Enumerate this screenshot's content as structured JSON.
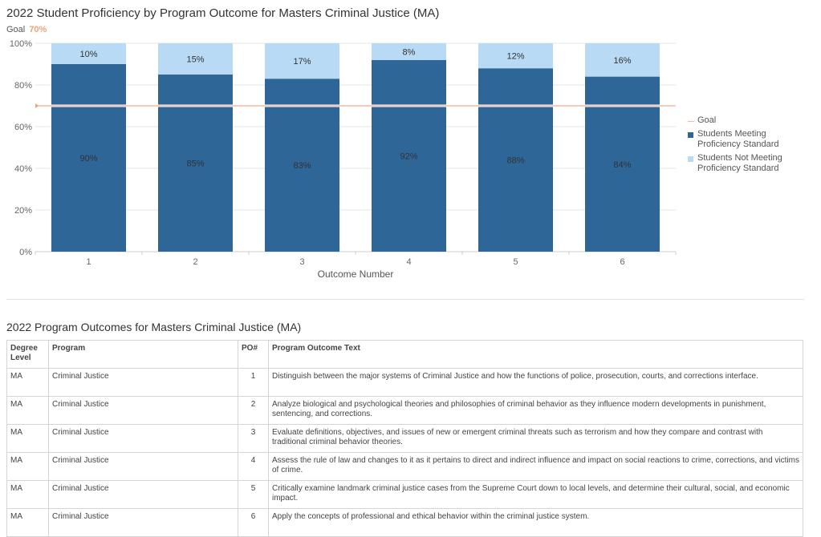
{
  "chart_data": {
    "type": "bar",
    "stacked": true,
    "title": "2022 Student Proficiency by Program Outcome for Masters Criminal Justice (MA)",
    "goal_label": "Goal",
    "goal_value_text": "70%",
    "goal": 70,
    "categories": [
      "1",
      "2",
      "3",
      "4",
      "5",
      "6"
    ],
    "series": [
      {
        "name": "Students Meeting Proficiency Standard",
        "values": [
          90,
          85,
          83,
          92,
          88,
          84
        ],
        "labels": [
          "90%",
          "85%",
          "83%",
          "92%",
          "88%",
          "84%"
        ],
        "color": "#2e6698"
      },
      {
        "name": "Students Not Meeting Proficiency Standard",
        "values": [
          10,
          15,
          17,
          8,
          12,
          16
        ],
        "labels": [
          "10%",
          "15%",
          "17%",
          "8%",
          "12%",
          "16%"
        ],
        "color": "#b8daf4"
      }
    ],
    "goal_color": "#f3b9a5",
    "xlabel": "Outcome Number",
    "ylabel": "",
    "ylim": [
      0,
      100
    ],
    "yticks": [
      0,
      20,
      40,
      60,
      80,
      100
    ],
    "ytick_labels": [
      "0%",
      "20%",
      "40%",
      "60%",
      "80%",
      "100%"
    ],
    "grid": true,
    "legend_position": "right"
  },
  "table": {
    "title": "2022 Program Outcomes for Masters Criminal Justice (MA)",
    "headers": [
      "Degree Level",
      "Program",
      "PO#",
      "Program Outcome Text"
    ],
    "rows": [
      [
        "MA",
        "Criminal Justice",
        "1",
        "Distinguish between the major systems of Criminal Justice and how the functions of police, prosecution, courts, and corrections interface."
      ],
      [
        "MA",
        "Criminal Justice",
        "2",
        "Analyze biological and psychological theories and philosophies of criminal behavior as they influence modern developments in punishment, sentencing, and corrections."
      ],
      [
        "MA",
        "Criminal Justice",
        "3",
        "Evaluate definitions, objectives, and issues of new or emergent criminal threats such as terrorism and how they compare and contrast with traditional criminal behavior theories."
      ],
      [
        "MA",
        "Criminal Justice",
        "4",
        "Assess the rule of law and changes to it as it pertains to direct and indirect influence and impact on social reactions to crime, corrections, and victims of crime."
      ],
      [
        "MA",
        "Criminal Justice",
        "5",
        "Critically examine landmark criminal justice cases from the Supreme Court down to local levels, and determine their cultural, social, and economic impact."
      ],
      [
        "MA",
        "Criminal Justice",
        "6",
        "Apply the concepts of professional and ethical behavior within the criminal justice system."
      ]
    ]
  }
}
